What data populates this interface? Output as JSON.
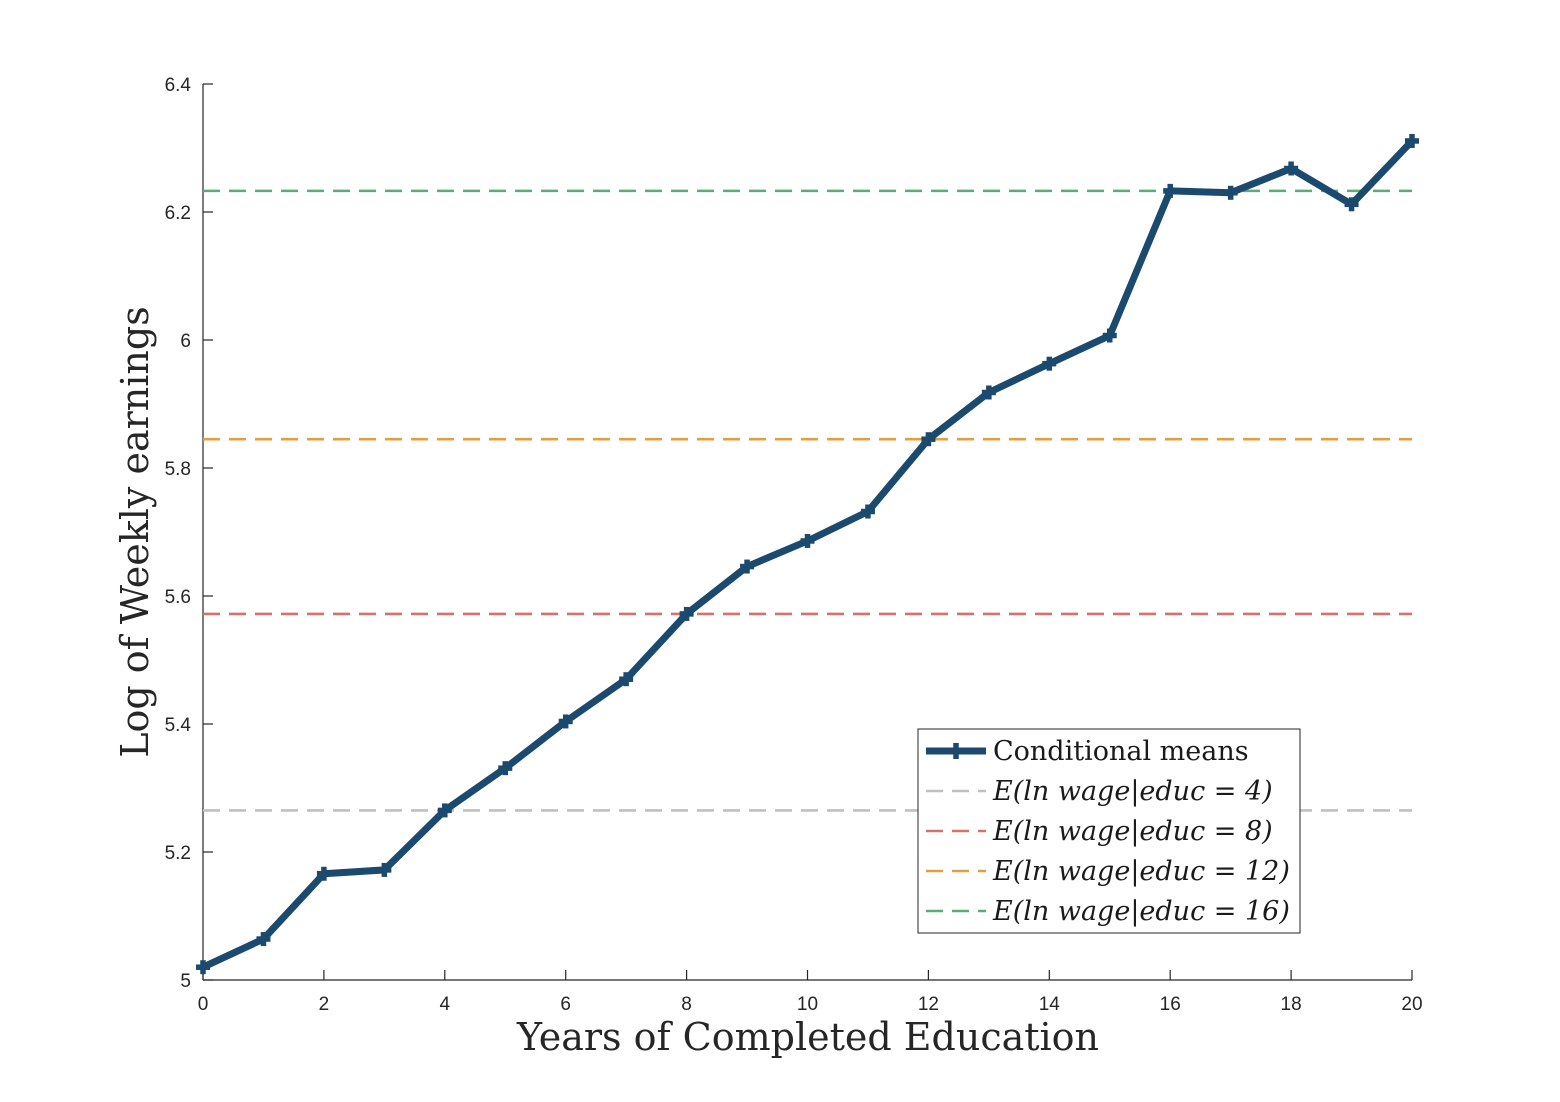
{
  "chart_data": {
    "type": "line",
    "xlabel": "Years of Completed Education",
    "ylabel": "Log of Weekly earnings",
    "xlim": [
      0,
      20
    ],
    "ylim": [
      5,
      6.4
    ],
    "xticks": [
      "0",
      "2",
      "4",
      "6",
      "8",
      "10",
      "12",
      "14",
      "16",
      "18",
      "20"
    ],
    "yticks": [
      "5",
      "5.2",
      "5.4",
      "5.6",
      "5.8",
      "6",
      "6.2",
      "6.4"
    ],
    "grid": false,
    "legend_position": "bottom-right",
    "series": [
      {
        "name": "Conditional means",
        "color": "#1b4a6e",
        "marker": "plus",
        "x": [
          0,
          1,
          2,
          3,
          4,
          5,
          6,
          7,
          8,
          9,
          10,
          11,
          12,
          13,
          14,
          15,
          16,
          17,
          18,
          19,
          20
        ],
        "y": [
          5.02,
          5.064,
          5.166,
          5.172,
          5.265,
          5.331,
          5.404,
          5.47,
          5.572,
          5.646,
          5.686,
          5.732,
          5.845,
          5.918,
          5.963,
          6.007,
          6.233,
          6.23,
          6.268,
          6.212,
          6.311
        ]
      }
    ],
    "reference_lines": [
      {
        "name": "E(ln wage|educ = 4)",
        "y": 5.265,
        "color": "#c0c0c0"
      },
      {
        "name": "E(ln wage|educ = 8)",
        "y": 5.572,
        "color": "#d4736d"
      },
      {
        "name": "E(ln wage|educ = 12)",
        "y": 5.845,
        "color": "#e0a040"
      },
      {
        "name": "E(ln wage|educ = 16)",
        "y": 6.233,
        "color": "#5aad78"
      }
    ]
  }
}
